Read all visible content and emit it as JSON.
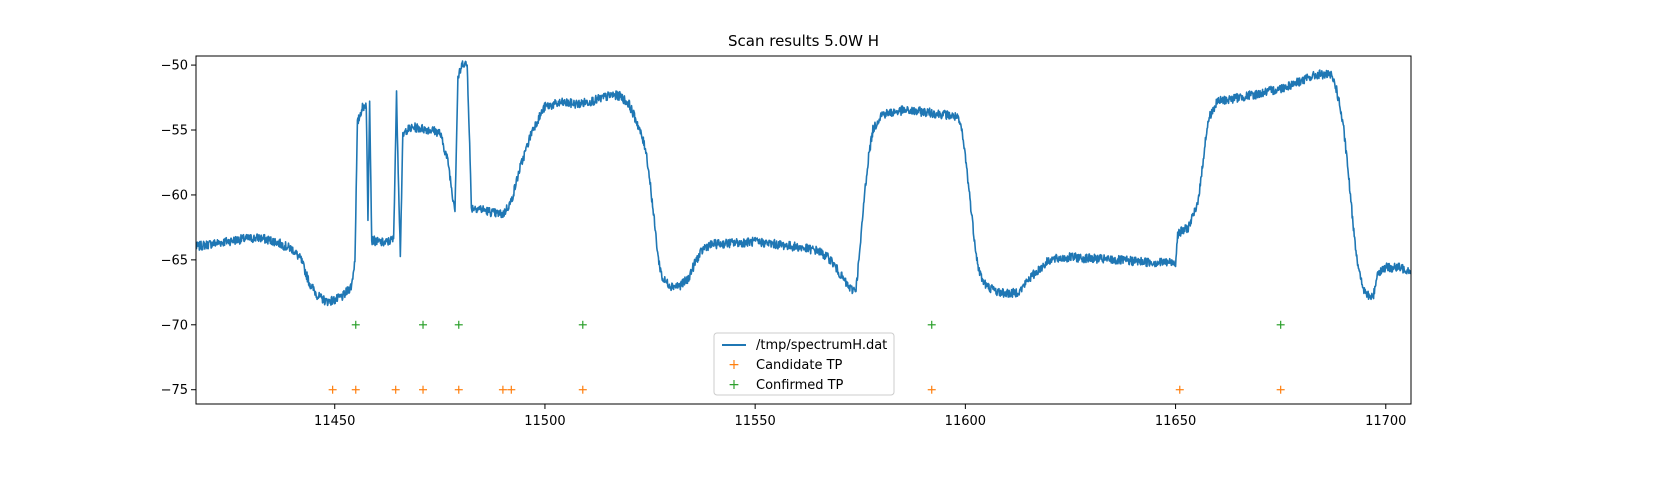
{
  "chart_data": {
    "type": "line",
    "title": "Scan results 5.0W H",
    "xlabel": "",
    "ylabel": "",
    "xlim": [
      11417,
      11706
    ],
    "ylim": [
      -76.1,
      -49.3
    ],
    "x_ticks": [
      11450,
      11500,
      11550,
      11600,
      11650,
      11700
    ],
    "y_ticks": [
      -50,
      -55,
      -60,
      -65,
      -70,
      -75
    ],
    "grid": false,
    "legend_position": "bottom-center",
    "colors": {
      "spectrum": "#1f77b4",
      "candidate": "#ff7f0e",
      "confirmed": "#2ca02c"
    },
    "series": [
      {
        "name": "/tmp/spectrumH.dat",
        "kind": "line",
        "noise": 0.35,
        "x": [
          11417,
          11420,
          11424,
          11428,
          11432,
          11436,
          11440,
          11442,
          11444,
          11446,
          11448,
          11450,
          11452,
          11454,
          11454.8,
          11455.4,
          11456.5,
          11457.5,
          11457.9,
          11458.3,
          11458.8,
          11459.2,
          11460,
          11462,
          11464,
          11464.7,
          11465.1,
          11465.6,
          11466.2,
          11467,
          11469,
          11471,
          11473,
          11475,
          11477,
          11478,
          11478.6,
          11479.3,
          11480.5,
          11481.5,
          11482,
          11482.5,
          11484,
          11486,
          11488,
          11490,
          11492,
          11494,
          11497,
          11500,
          11504,
          11508,
          11512,
          11516,
          11518,
          11520,
          11522,
          11524,
          11525,
          11526,
          11527,
          11528,
          11530,
          11532,
          11534,
          11536,
          11538,
          11540,
          11545,
          11550,
          11555,
          11560,
          11565,
          11568,
          11570,
          11572,
          11573,
          11574,
          11575,
          11576,
          11577,
          11578,
          11580,
          11585,
          11590,
          11595,
          11598,
          11599,
          11600,
          11601,
          11602,
          11603,
          11604,
          11605,
          11608,
          11611,
          11613,
          11615,
          11620,
          11625,
          11630,
          11635,
          11640,
          11645,
          11648,
          11650,
          11650.5,
          11653,
          11655,
          11656,
          11657,
          11658,
          11660,
          11665,
          11670,
          11675,
          11680,
          11684,
          11687,
          11688,
          11689,
          11690,
          11691,
          11692,
          11693,
          11694,
          11695,
          11696,
          11697,
          11698,
          11700,
          11703,
          11706
        ],
        "y": [
          -64.0,
          -63.8,
          -63.6,
          -63.4,
          -63.3,
          -63.6,
          -64.2,
          -65.0,
          -66.8,
          -67.8,
          -68.2,
          -68.1,
          -67.8,
          -67.0,
          -65.0,
          -54.5,
          -53.3,
          -53.0,
          -62.0,
          -52.5,
          -63.5,
          -63.5,
          -63.6,
          -63.7,
          -63.4,
          -52.3,
          -58.0,
          -64.5,
          -55.5,
          -55.0,
          -54.8,
          -54.9,
          -55.0,
          -55.2,
          -57.5,
          -60.0,
          -61.0,
          -51.0,
          -49.8,
          -50.0,
          -55.0,
          -61.0,
          -61.0,
          -61.2,
          -61.4,
          -61.5,
          -60.5,
          -58.0,
          -55.0,
          -53.2,
          -52.9,
          -53.0,
          -52.7,
          -52.3,
          -52.4,
          -53.0,
          -54.5,
          -56.5,
          -59.0,
          -62.0,
          -65.0,
          -66.5,
          -67.0,
          -67.0,
          -66.5,
          -65.0,
          -64.0,
          -63.8,
          -63.7,
          -63.6,
          -63.8,
          -64.0,
          -64.3,
          -65.0,
          -66.0,
          -67.0,
          -67.3,
          -67.2,
          -64.0,
          -60.0,
          -57.0,
          -55.0,
          -53.8,
          -53.5,
          -53.6,
          -53.8,
          -54.0,
          -54.8,
          -57.0,
          -60.0,
          -63.0,
          -65.5,
          -66.5,
          -67.0,
          -67.5,
          -67.6,
          -67.4,
          -66.5,
          -65.0,
          -64.8,
          -64.9,
          -65.0,
          -65.1,
          -65.2,
          -65.2,
          -65.2,
          -63.0,
          -62.5,
          -61.0,
          -59.0,
          -56.0,
          -54.0,
          -52.8,
          -52.5,
          -52.2,
          -51.8,
          -51.2,
          -50.7,
          -50.8,
          -51.5,
          -53.0,
          -55.0,
          -58.0,
          -61.5,
          -64.5,
          -66.5,
          -67.5,
          -67.8,
          -67.9,
          -66.0,
          -65.6,
          -65.6,
          -65.8
        ]
      },
      {
        "name": "Candidate TP",
        "kind": "marker",
        "x": [
          11449.5,
          11455,
          11464.5,
          11471,
          11479.5,
          11490,
          11492,
          11509,
          11592,
          11651,
          11675
        ],
        "y": [
          -75,
          -75,
          -75,
          -75,
          -75,
          -75,
          -75,
          -75,
          -75,
          -75,
          -75
        ]
      },
      {
        "name": "Confirmed TP",
        "kind": "marker",
        "x": [
          11455,
          11471,
          11479.5,
          11509,
          11592,
          11675
        ],
        "y": [
          -70,
          -70,
          -70,
          -70,
          -70,
          -70
        ]
      }
    ]
  }
}
